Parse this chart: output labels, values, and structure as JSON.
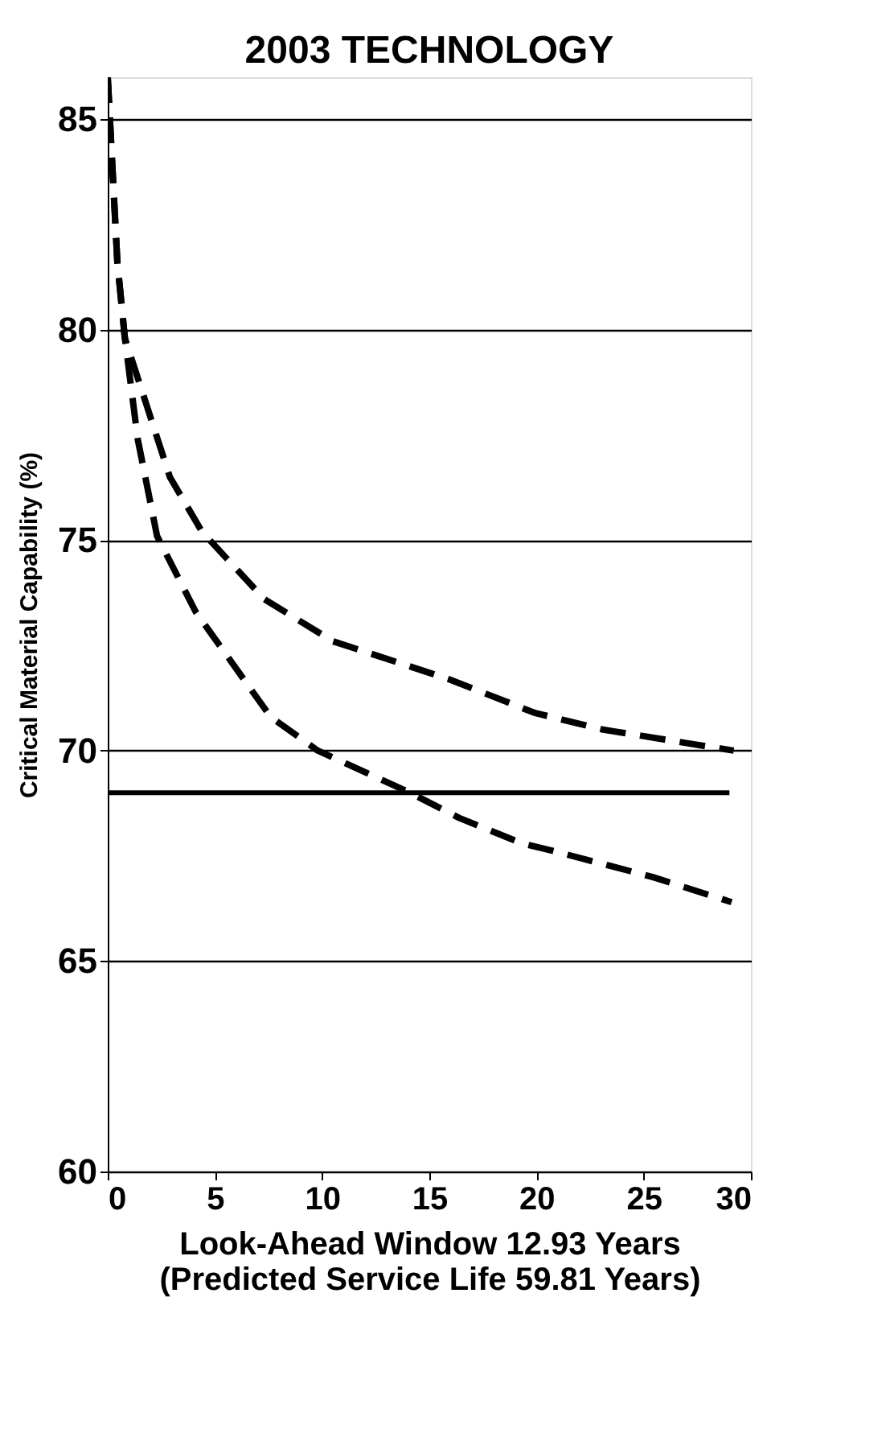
{
  "chart_data": {
    "type": "line",
    "title": "2003 TECHNOLOGY",
    "xlabel": "Look-Ahead Window 12.93 Years\n(Predicted Service Life 59.81 Years)",
    "ylabel": "Critical Material Capability (%)",
    "xlim": [
      0,
      30
    ],
    "xticks": [
      0,
      5,
      10,
      15,
      20,
      25,
      30
    ],
    "ylim": [
      60,
      86
    ],
    "yticks": [
      60,
      65,
      70,
      75,
      80,
      85
    ],
    "grid": "y",
    "series": [
      {
        "color": "#000000",
        "line_style": "solid",
        "x": [
          0,
          29
        ],
        "values": [
          69,
          69
        ]
      },
      {
        "color": "#000000",
        "line_style": "dashed",
        "x": [
          0,
          0.45,
          0.8,
          2.9,
          4.4,
          7.3,
          10.5,
          15.9,
          19.9,
          23.1,
          29.2
        ],
        "values": [
          86.0,
          81.6,
          79.8,
          76.5,
          75.2,
          73.6,
          72.6,
          71.7,
          70.9,
          70.5,
          70.0
        ]
      },
      {
        "color": "#000000",
        "line_style": "dashed",
        "x": [
          0,
          0.45,
          0.8,
          1.4,
          2.3,
          4.1,
          7.6,
          9.8,
          14.1,
          16.4,
          19.3,
          20.9,
          25.4,
          29.1
        ],
        "values": [
          86.0,
          81.6,
          79.8,
          77.4,
          75.1,
          73.3,
          70.8,
          70.0,
          69.0,
          68.4,
          67.8,
          67.6,
          67.0,
          66.4
        ]
      }
    ]
  }
}
